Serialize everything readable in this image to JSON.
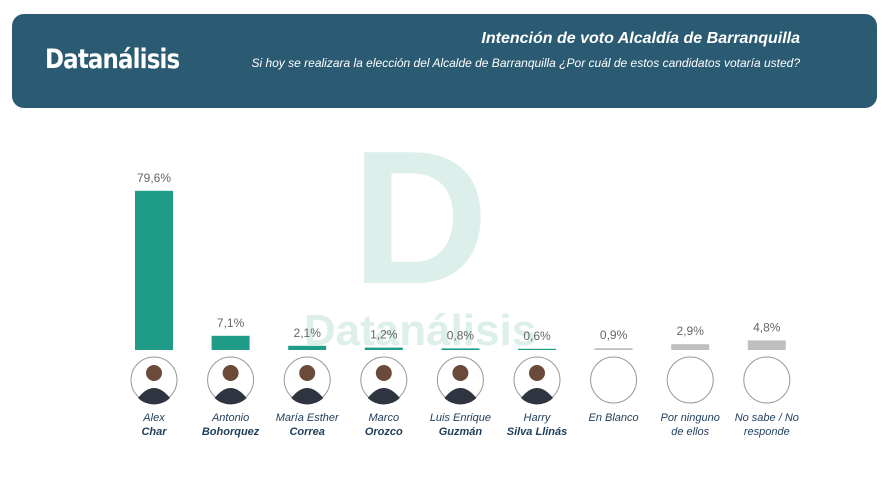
{
  "header": {
    "logo": "Datanálisis",
    "title": "Intención de voto Alcaldía de Barranquilla",
    "subtitle": "Si hoy se realizara la elección del Alcalde de Barranquilla ¿Por cuál de estos candidatos votaría usted?"
  },
  "chart_data": {
    "type": "bar",
    "categories": [
      {
        "name": "Alex",
        "surname": "Char"
      },
      {
        "name": "Antonio",
        "surname": "Bohorquez"
      },
      {
        "name": "María Esther",
        "surname": "Correa"
      },
      {
        "name": "Marco",
        "surname": "Orozco"
      },
      {
        "name": "Luis Enrique",
        "surname": "Guzmán"
      },
      {
        "name": "Harry",
        "surname": "Silva Llinás"
      },
      {
        "name": "En Blanco"
      },
      {
        "name": "Por ninguno de ellos"
      },
      {
        "name": "No sabe / No responde"
      }
    ],
    "values": [
      79.6,
      7.1,
      2.1,
      1.2,
      0.8,
      0.6,
      0.9,
      2.9,
      4.8
    ],
    "value_labels": [
      "79,6%",
      "7,1%",
      "2,1%",
      "1,2%",
      "0,8%",
      "0,6%",
      "0,9%",
      "2,9%",
      "4,8%"
    ],
    "colors": [
      "#1f9c88",
      "#1f9c88",
      "#1f9c88",
      "#1f9c88",
      "#1f9c88",
      "#1f9c88",
      "#bfbfbf",
      "#bfbfbf",
      "#bfbfbf"
    ]
  }
}
